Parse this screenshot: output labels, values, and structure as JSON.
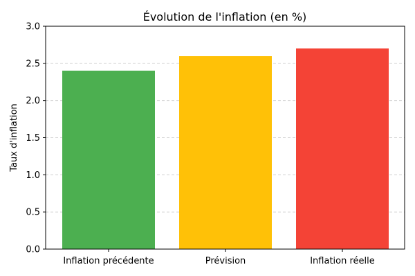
{
  "chart_data": {
    "type": "bar",
    "title": "Évolution de l'inflation (en %)",
    "xlabel": "",
    "ylabel": "Taux d'inflation",
    "categories": [
      "Inflation précédente",
      "Prévision",
      "Inflation réelle"
    ],
    "values": [
      2.4,
      2.6,
      2.7
    ],
    "colors": [
      "#4caf50",
      "#ffc107",
      "#f44336"
    ],
    "ylim": [
      0,
      3.0
    ],
    "yticks": [
      0.0,
      0.5,
      1.0,
      1.5,
      2.0,
      2.5,
      3.0
    ],
    "ytick_labels": [
      "0.0",
      "0.5",
      "1.0",
      "1.5",
      "2.0",
      "2.5",
      "3.0"
    ],
    "grid": "y-dashed",
    "legend": "none"
  }
}
